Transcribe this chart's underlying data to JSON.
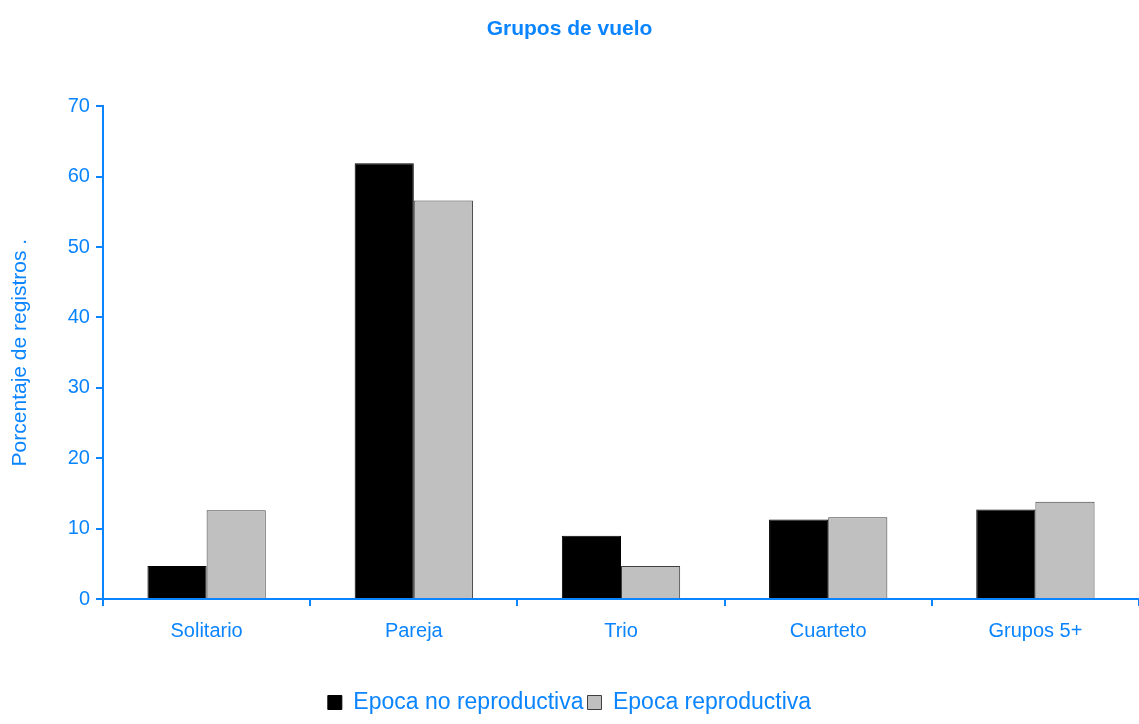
{
  "chart_data": {
    "type": "bar",
    "title": "Grupos de vuelo",
    "ylabel": "Porcentaje de registros .",
    "categories": [
      "Solitario",
      "Pareja",
      "Trio",
      "Cuarteto",
      "Grupos 5+"
    ],
    "series": [
      {
        "name": "Epoca no reproductiva",
        "color": "#000000",
        "values": [
          4.7,
          61.9,
          9.0,
          11.3,
          12.7
        ]
      },
      {
        "name": "Epoca reproductiva",
        "color": "#c0c0c0",
        "values": [
          12.6,
          56.6,
          4.7,
          11.6,
          13.8
        ]
      }
    ],
    "ylim": [
      0,
      70
    ],
    "yticks": [
      0,
      10,
      20,
      30,
      40,
      50,
      60,
      70
    ],
    "legend": "bottom"
  }
}
